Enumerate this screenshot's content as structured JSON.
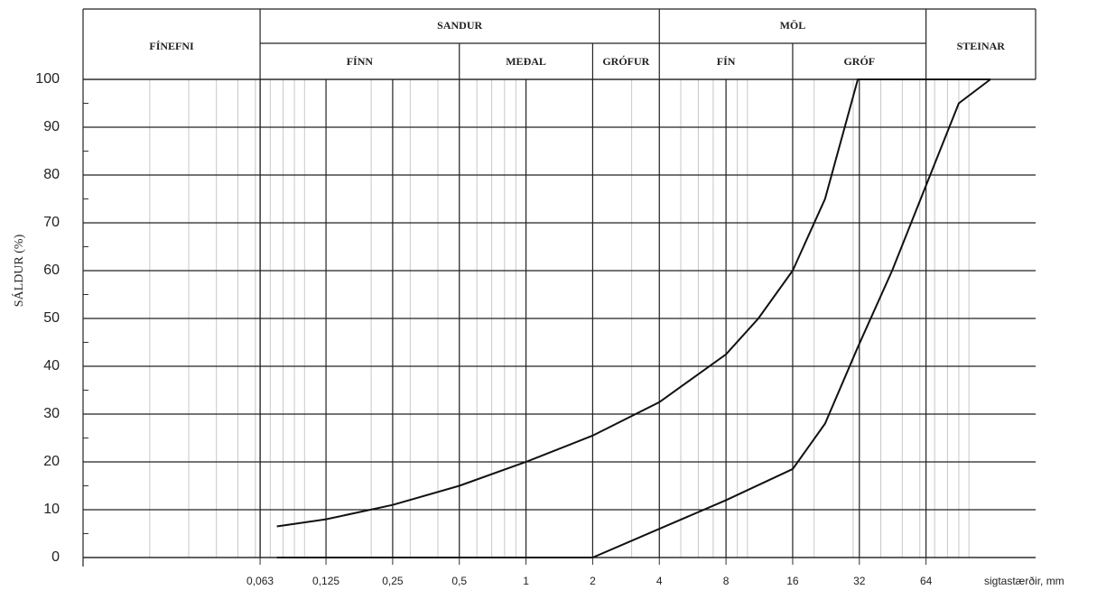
{
  "chart_data": {
    "type": "line",
    "y_label": "SÁLDUR (%)",
    "x_label": "sigtastærðir, mm",
    "log_x": true,
    "grid": true,
    "zones": {
      "top": [
        "SANDUR",
        "MÖL"
      ],
      "full": [
        "FÍNEFNI",
        "STEINAR"
      ],
      "sub": [
        "FÍNN",
        "MEÐAL",
        "GRÓFUR",
        "FÍN",
        "GRÓF"
      ]
    },
    "xlim": [
      0.01,
      200
    ],
    "xticks": [
      {
        "value": 0.063,
        "label": "0,063"
      },
      {
        "value": 0.125,
        "label": "0,125"
      },
      {
        "value": 0.25,
        "label": "0,25"
      },
      {
        "value": 0.5,
        "label": "0,5"
      },
      1,
      2,
      4,
      8,
      16,
      32,
      64
    ],
    "ylim": [
      0,
      100
    ],
    "yticks": [
      0,
      10,
      20,
      30,
      40,
      50,
      60,
      70,
      80,
      90,
      100
    ],
    "series": [
      {
        "color": "#111111",
        "x": [
          0.075,
          0.125,
          0.25,
          0.5,
          1,
          2,
          4,
          8,
          11.2,
          16,
          22.4,
          31.5,
          125
        ],
        "values": [
          6.5,
          8,
          11,
          15,
          20,
          25.5,
          32.5,
          42.5,
          50,
          60,
          75,
          100,
          100
        ]
      },
      {
        "color": "#111111",
        "x": [
          0.075,
          0.125,
          0.25,
          0.5,
          1,
          2,
          4,
          8,
          16,
          22.4,
          31.5,
          45,
          63,
          90,
          125
        ],
        "values": [
          0,
          0,
          0,
          0,
          0,
          0,
          6,
          12,
          18.5,
          28,
          44,
          60,
          77,
          95,
          100
        ]
      }
    ]
  }
}
